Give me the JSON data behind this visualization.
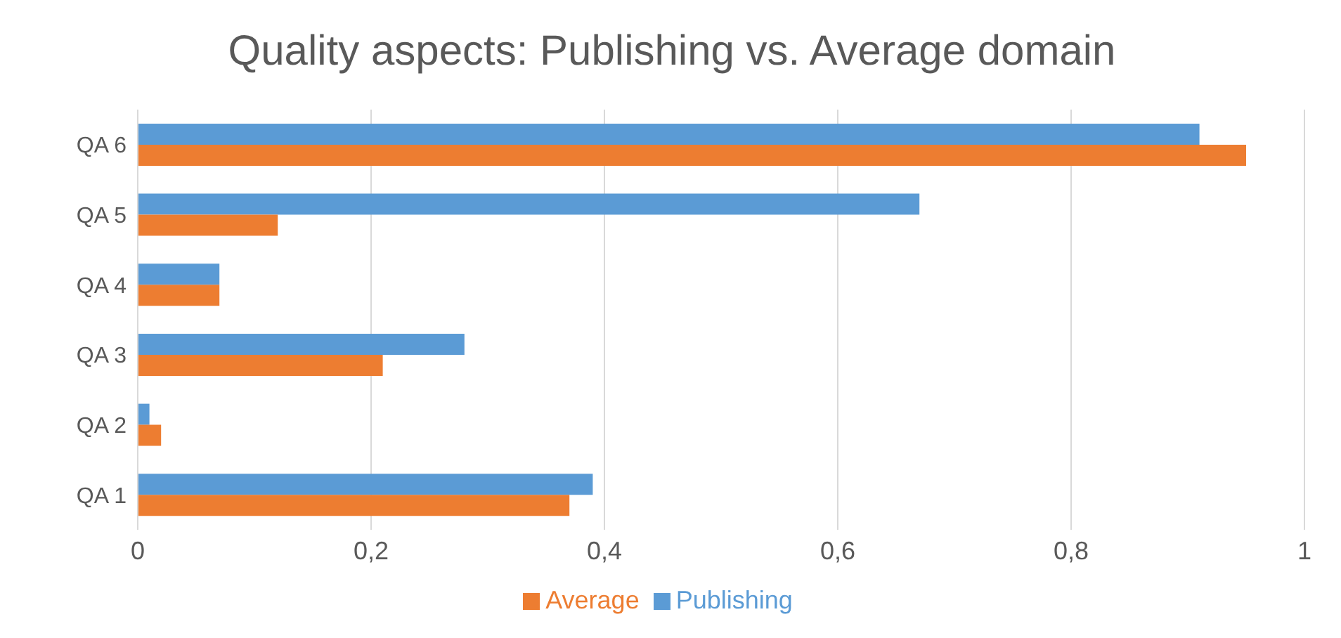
{
  "chart_data": {
    "type": "bar",
    "orientation": "horizontal",
    "title": "Quality aspects: Publishing vs. Average domain",
    "categories": [
      "QA 6",
      "QA 5",
      "QA 4",
      "QA 3",
      "QA 2",
      "QA 1"
    ],
    "series": [
      {
        "name": "Publishing",
        "color": "#5b9bd5",
        "values": [
          0.91,
          0.67,
          0.07,
          0.28,
          0.01,
          0.39
        ]
      },
      {
        "name": "Average",
        "color": "#ed7d31",
        "values": [
          0.95,
          0.12,
          0.07,
          0.21,
          0.02,
          0.37
        ]
      }
    ],
    "xlim": [
      0,
      1
    ],
    "xticks": [
      0,
      {
        "value": 0.2,
        "label": "0,2"
      },
      {
        "value": 0.4,
        "label": "0,4"
      },
      {
        "value": 0.6,
        "label": "0,6"
      },
      {
        "value": 0.8,
        "label": "0,8"
      },
      1
    ],
    "grid": "x",
    "legend": "bottom"
  }
}
